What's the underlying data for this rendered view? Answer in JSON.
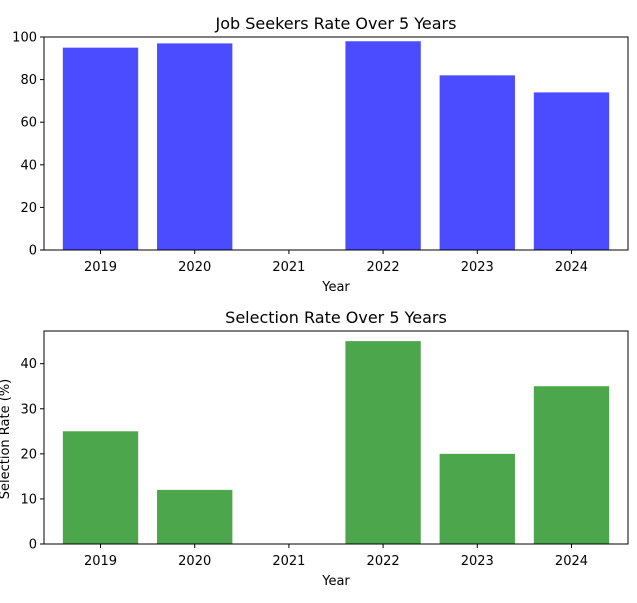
{
  "chart_data": [
    {
      "type": "bar",
      "title": "Job Seekers Rate Over 5 Years",
      "xlabel": "Year",
      "ylabel": "",
      "categories": [
        "2019",
        "2020",
        "2021",
        "2022",
        "2023",
        "2024"
      ],
      "values": [
        95,
        97,
        0,
        98,
        82,
        74
      ],
      "ylim": [
        0,
        100
      ],
      "yticks": [
        0,
        20,
        40,
        60,
        80,
        100
      ],
      "color": "#4b4bff",
      "grid": false,
      "legend": "none"
    },
    {
      "type": "bar",
      "title": "Selection Rate Over 5 Years",
      "xlabel": "Year",
      "ylabel": "Selection Rate (%)",
      "categories": [
        "2019",
        "2020",
        "2021",
        "2022",
        "2023",
        "2024"
      ],
      "values": [
        25,
        12,
        0,
        45,
        20,
        35
      ],
      "ylim": [
        0,
        47.25
      ],
      "yticks": [
        0,
        10,
        20,
        30,
        40
      ],
      "color": "#4ca64c",
      "grid": false,
      "legend": "none"
    }
  ]
}
